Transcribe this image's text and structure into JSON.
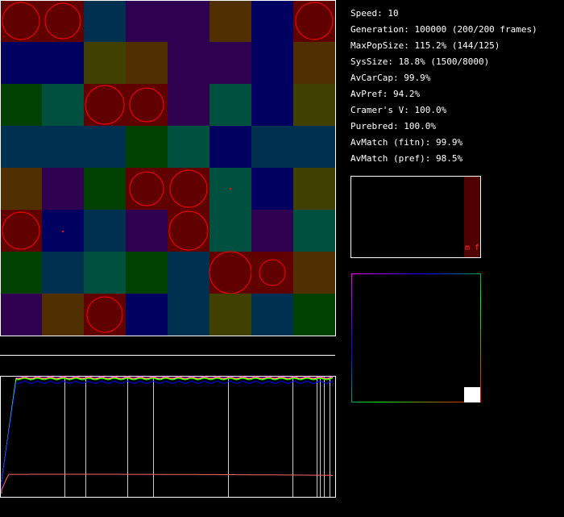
{
  "stats": [
    "Speed: 10",
    "Generation: 100000 (200/200 frames)",
    "MaxPopSize: 115.2% (144/125)",
    "SysSize: 18.8% (1500/8000)",
    "AvCarCap: 99.9%",
    "AvPref: 94.2%",
    "Cramer's V: 100.0%",
    "Purebred: 100.0%",
    "AvMatch (fitn): 99.9%",
    "AvMatch (pref): 98.5%"
  ],
  "histogram_label": "m f"
}
